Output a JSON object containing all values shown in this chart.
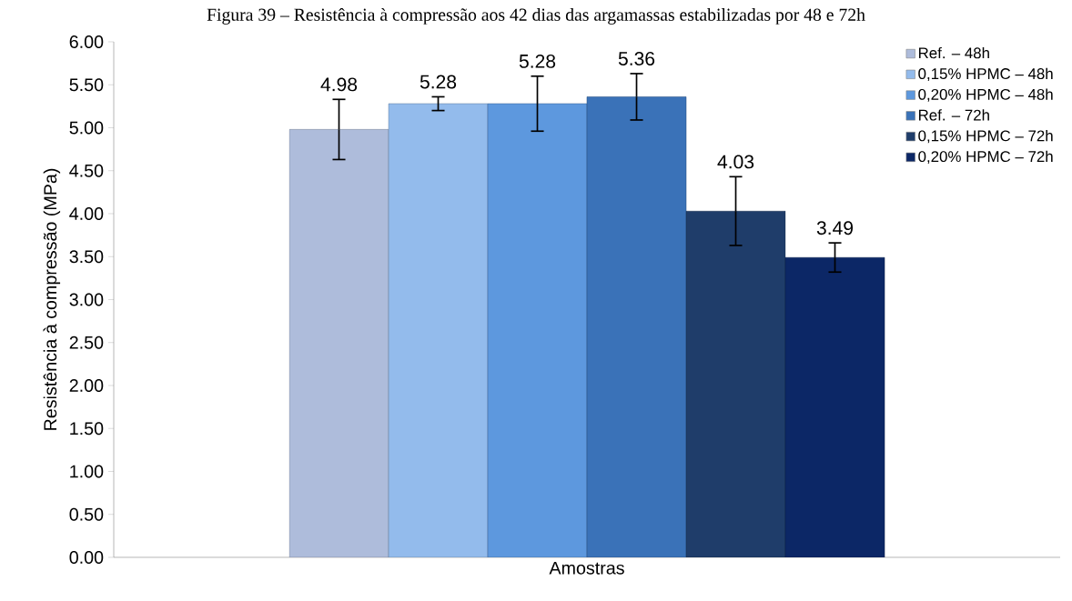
{
  "chart_data": {
    "type": "bar",
    "title": "Figura 39 – Resistência à compressão aos 42 dias das argamassas estabilizadas por 48 e 72h",
    "xlabel": "Amostras",
    "ylabel": "Resistência à compressão (MPa)",
    "categories": [
      null
    ],
    "series": [
      {
        "name": "Ref. – 48h",
        "color": "#aebcdb",
        "values": [
          4.98
        ],
        "errors": [
          0.35
        ]
      },
      {
        "name": "0,15% HPMC – 48h",
        "color": "#93bbec",
        "values": [
          5.28
        ],
        "errors": [
          0.08
        ]
      },
      {
        "name": "0,20% HPMC – 48h",
        "color": "#5d98de",
        "values": [
          5.28
        ],
        "errors": [
          0.32
        ]
      },
      {
        "name": "Ref. – 72h",
        "color": "#3a72b8",
        "values": [
          5.36
        ],
        "errors": [
          0.27
        ]
      },
      {
        "name": "0,15% HPMC – 72h",
        "color": "#1f3d6a",
        "values": [
          4.03
        ],
        "errors": [
          0.4
        ]
      },
      {
        "name": "0,20% HPMC – 72h",
        "color": "#0c2766",
        "values": [
          3.49
        ],
        "errors": [
          0.17
        ]
      }
    ],
    "ylim": [
      0,
      6
    ],
    "yticks": [
      {
        "value": 0,
        "label": "0.00"
      },
      {
        "value": 0.5,
        "label": "0.50"
      },
      {
        "value": 1,
        "label": "1.00"
      },
      {
        "value": 1.5,
        "label": "1.50"
      },
      {
        "value": 2,
        "label": "2.00"
      },
      {
        "value": 2.5,
        "label": "2.50"
      },
      {
        "value": 3,
        "label": "3.00"
      },
      {
        "value": 3.5,
        "label": "3.50"
      },
      {
        "value": 4,
        "label": "4.00"
      },
      {
        "value": 4.5,
        "label": "4.50"
      },
      {
        "value": 5,
        "label": "5.00"
      },
      {
        "value": 5.5,
        "label": "5.50"
      },
      {
        "value": 6,
        "label": "6.00"
      }
    ],
    "data_labels": true,
    "legend": "top right",
    "grid": false
  }
}
